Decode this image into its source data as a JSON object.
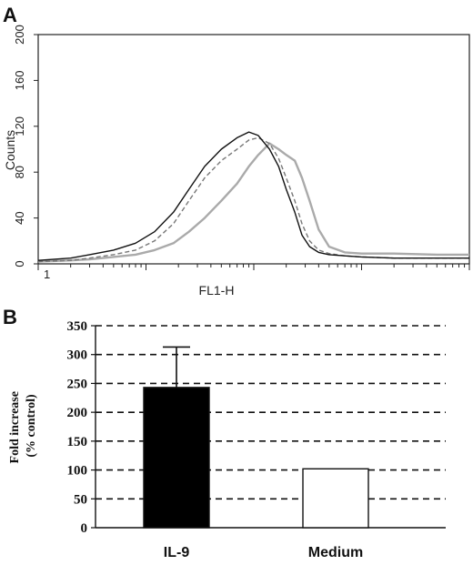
{
  "chart_data": [
    {
      "panel": "A",
      "type": "line",
      "title": "",
      "xlabel": "FL1-H",
      "ylabel": "Counts",
      "x_scale": "log",
      "xlim": [
        1,
        10000
      ],
      "ylim": [
        0,
        200
      ],
      "x_ticks": [
        "1"
      ],
      "y_ticks": [
        0,
        40,
        80,
        120,
        160,
        200
      ],
      "series": [
        {
          "color": "#111111",
          "dash": "solid",
          "x": [
            1,
            2,
            3,
            5,
            8,
            12,
            18,
            25,
            35,
            50,
            70,
            90,
            110,
            140,
            170,
            200,
            240,
            280,
            330,
            400,
            500,
            700,
            1000,
            2000,
            5000,
            10000
          ],
          "y": [
            3,
            5,
            8,
            12,
            18,
            28,
            45,
            65,
            85,
            100,
            110,
            115,
            112,
            100,
            85,
            65,
            45,
            25,
            15,
            10,
            8,
            7,
            6,
            5,
            5,
            5
          ]
        },
        {
          "color": "#777777",
          "dash": "dashed",
          "x": [
            1,
            2,
            3,
            5,
            8,
            12,
            18,
            25,
            35,
            50,
            70,
            90,
            110,
            140,
            170,
            200,
            240,
            280,
            330,
            400,
            500,
            700,
            1000,
            2000,
            5000,
            10000
          ],
          "y": [
            2,
            3,
            5,
            8,
            12,
            20,
            35,
            55,
            75,
            90,
            100,
            108,
            110,
            105,
            92,
            75,
            55,
            35,
            20,
            12,
            9,
            7,
            6,
            5,
            5,
            5
          ]
        },
        {
          "color": "#aaaaaa",
          "dash": "solid",
          "x": [
            1,
            2,
            3,
            5,
            8,
            12,
            18,
            25,
            35,
            50,
            70,
            90,
            110,
            140,
            170,
            200,
            240,
            280,
            330,
            400,
            500,
            700,
            1000,
            2000,
            5000,
            10000
          ],
          "y": [
            2,
            3,
            4,
            6,
            8,
            12,
            18,
            28,
            40,
            55,
            70,
            85,
            95,
            105,
            100,
            95,
            90,
            75,
            55,
            30,
            15,
            10,
            9,
            9,
            8,
            8
          ]
        }
      ]
    },
    {
      "panel": "B",
      "type": "bar",
      "title": "",
      "xlabel": "",
      "ylabel": "Fold increase\n(% control)",
      "categories": [
        "IL-9",
        "Medium"
      ],
      "values": [
        243,
        102
      ],
      "error_upper": [
        313,
        null
      ],
      "bar_colors": [
        "#000000",
        "#ffffff"
      ],
      "ylim": [
        0,
        350
      ],
      "y_ticks": [
        0,
        50,
        100,
        150,
        200,
        250,
        300,
        350
      ],
      "grid": "dashed horizontal"
    }
  ]
}
